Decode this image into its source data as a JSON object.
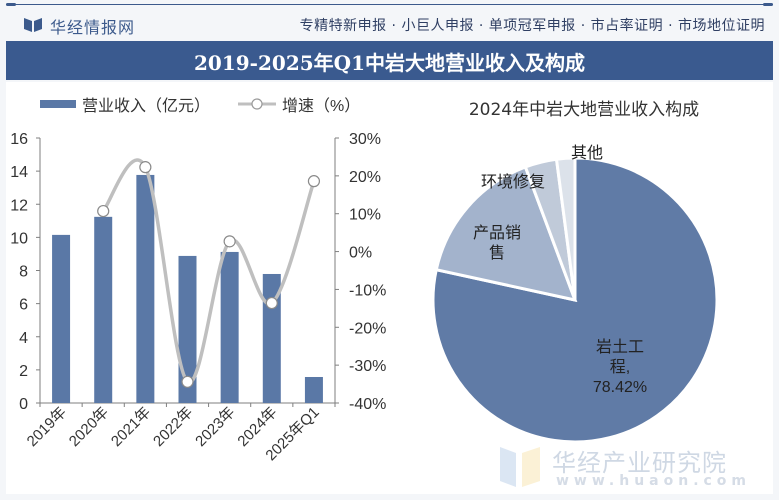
{
  "header": {
    "brand_name": "华经情报网",
    "services": "专精特新申报 · 小巨人申报 · 单项冠军申报 · 市占率证明 · 市场地位证明"
  },
  "title": "2019-2025年Q1中岩大地营业收入及构成",
  "watermark": {
    "name": "华经产业研究院",
    "url": "www.huaon.com"
  },
  "colors": {
    "bar": "#5a78a6",
    "line": "#bfbfbf",
    "title_bg": "#3a5a8f",
    "pie": [
      "#607ba6",
      "#a3b3cc",
      "#c0cad9",
      "#dce2ea"
    ]
  },
  "chart_data": [
    {
      "type": "bar+line",
      "title": "",
      "categories": [
        "2019年",
        "2020年",
        "2021年",
        "2022年",
        "2023年",
        "2024年",
        "2025年Q1"
      ],
      "series": [
        {
          "name": "营业收入（亿元）",
          "type": "bar",
          "axis": "left",
          "values": [
            10.15,
            11.24,
            13.77,
            8.88,
            9.12,
            7.79,
            1.57
          ]
        },
        {
          "name": "增速（%）",
          "type": "line",
          "axis": "right",
          "values": [
            null,
            10.7,
            22.3,
            -34.4,
            2.7,
            -13.6,
            18.6
          ]
        }
      ],
      "ylim_left": [
        0,
        16
      ],
      "yticks_left": [
        "0",
        "2",
        "4",
        "6",
        "8",
        "10",
        "12",
        "14",
        "16"
      ],
      "ylim_right": [
        -40,
        30
      ],
      "yticks_right": [
        "-40%",
        "-30%",
        "-20%",
        "-10%",
        "0%",
        "10%",
        "20%",
        "30%"
      ],
      "legend_position": "top",
      "grid": false
    },
    {
      "type": "pie",
      "title": "2024年中岩大地营业收入构成",
      "slices": [
        {
          "label": "岩土工程",
          "value": 78.42,
          "display": [
            "岩土工",
            "程,",
            "78.42%"
          ]
        },
        {
          "label": "产品销售",
          "value": 15.9,
          "display": [
            "产品销",
            "售"
          ]
        },
        {
          "label": "环境修复",
          "value": 3.6,
          "display": [
            "环境修复"
          ]
        },
        {
          "label": "其他",
          "value": 2.08,
          "display": [
            "其他"
          ]
        }
      ]
    }
  ]
}
